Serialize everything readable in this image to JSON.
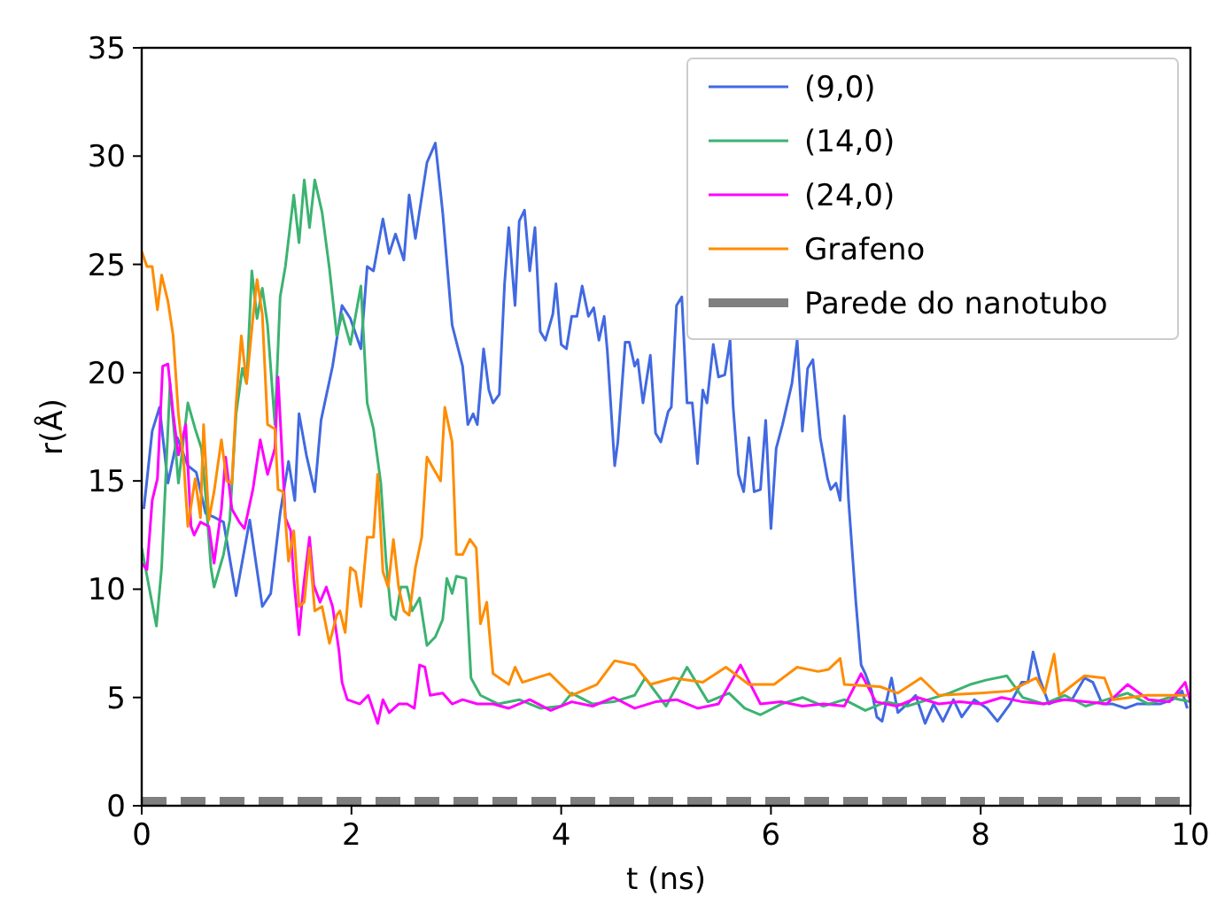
{
  "chart_data": {
    "type": "line",
    "xlabel": "t (ns)",
    "ylabel": "r(Å)",
    "xlim": [
      0,
      10
    ],
    "ylim": [
      0,
      35
    ],
    "xticks": [
      0,
      2,
      4,
      6,
      8,
      10
    ],
    "yticks": [
      0,
      5,
      10,
      15,
      20,
      25,
      30,
      35
    ],
    "grid": false,
    "legend": "top right",
    "marker": "none",
    "series": [
      {
        "name": "(9,0)",
        "color": "#4169e1",
        "x": [
          0.02,
          0.1,
          0.17,
          0.25,
          0.34,
          0.44,
          0.52,
          0.61,
          0.7,
          0.78,
          0.9,
          1.03,
          1.15,
          1.23,
          1.32,
          1.4,
          1.46,
          1.5,
          1.57,
          1.65,
          1.71,
          1.82,
          1.91,
          1.99,
          2.09,
          2.15,
          2.21,
          2.3,
          2.36,
          2.42,
          2.5,
          2.55,
          2.61,
          2.72,
          2.8,
          2.87,
          2.96,
          3.06,
          3.11,
          3.16,
          3.2,
          3.26,
          3.31,
          3.35,
          3.41,
          3.46,
          3.5,
          3.56,
          3.6,
          3.65,
          3.7,
          3.75,
          3.8,
          3.85,
          3.92,
          3.95,
          4.0,
          4.05,
          4.1,
          4.15,
          4.2,
          4.26,
          4.31,
          4.36,
          4.41,
          4.44,
          4.51,
          4.54,
          4.61,
          4.65,
          4.7,
          4.73,
          4.78,
          4.85,
          4.9,
          4.95,
          5.02,
          5.05,
          5.1,
          5.15,
          5.2,
          5.25,
          5.3,
          5.35,
          5.39,
          5.45,
          5.5,
          5.56,
          5.61,
          5.64,
          5.69,
          5.74,
          5.79,
          5.84,
          5.9,
          5.95,
          6.0,
          6.05,
          6.11,
          6.2,
          6.25,
          6.3,
          6.35,
          6.4,
          6.47,
          6.54,
          6.57,
          6.62,
          6.66,
          6.7,
          6.74,
          6.81,
          6.86,
          6.9,
          6.96,
          7.01,
          7.06,
          7.15,
          7.21,
          7.3,
          7.38,
          7.47,
          7.55,
          7.64,
          7.74,
          7.82,
          7.94,
          8.06,
          8.16,
          8.28,
          8.39,
          8.45,
          8.5,
          8.56,
          8.65,
          8.75,
          8.87,
          8.99,
          9.07,
          9.16,
          9.26,
          9.38,
          9.49,
          9.6,
          9.71,
          9.83,
          9.92,
          9.97
        ],
        "values": [
          13.7,
          17.3,
          18.4,
          14.9,
          17,
          15.7,
          15.4,
          13.5,
          13.3,
          13.1,
          9.7,
          13.2,
          9.2,
          9.8,
          13.5,
          15.9,
          14.1,
          18.1,
          16.2,
          14.5,
          17.8,
          20.3,
          23.1,
          22.5,
          21.1,
          24.9,
          24.7,
          27.1,
          25.5,
          26.4,
          25.2,
          28.2,
          26.2,
          29.7,
          30.6,
          27.4,
          22.2,
          20.3,
          17.6,
          18.1,
          17.6,
          21.1,
          19.2,
          18.6,
          19,
          24.1,
          26.7,
          23.1,
          27,
          27.5,
          24.7,
          26.7,
          21.9,
          21.5,
          22.7,
          24.1,
          21.3,
          21.1,
          22.6,
          22.6,
          24,
          22.6,
          23,
          21.5,
          22.6,
          21,
          15.7,
          16.8,
          21.4,
          21.4,
          20.3,
          20.6,
          18.6,
          20.8,
          17.2,
          16.8,
          18.2,
          18.4,
          23.1,
          23.5,
          18.6,
          18.6,
          15.8,
          19.2,
          18.6,
          21.3,
          19.8,
          19.9,
          21.5,
          18.4,
          15.3,
          14.5,
          17,
          14.5,
          14.6,
          17.8,
          12.8,
          16.5,
          17.6,
          19.5,
          21.5,
          17.3,
          20.2,
          20.6,
          17,
          15.1,
          14.6,
          14.9,
          14.1,
          18,
          14.1,
          9.4,
          6.5,
          6.1,
          5.3,
          4.1,
          3.9,
          5.9,
          4.3,
          4.7,
          5.1,
          3.8,
          4.7,
          3.9,
          4.9,
          4.1,
          4.9,
          4.5,
          3.9,
          4.7,
          5.7,
          5.7,
          7.1,
          5.9,
          4.7,
          4.9,
          4.9,
          5.9,
          5.7,
          4.7,
          4.7,
          4.5,
          4.7,
          4.7,
          4.7,
          4.9,
          5.3,
          4.5
        ]
      },
      {
        "name": "(14,0)",
        "color": "#3cb371",
        "x": [
          0,
          0.14,
          0.19,
          0.27,
          0.35,
          0.44,
          0.51,
          0.57,
          0.61,
          0.66,
          0.69,
          0.78,
          0.84,
          0.9,
          0.96,
          1.0,
          1.05,
          1.1,
          1.15,
          1.2,
          1.27,
          1.32,
          1.37,
          1.45,
          1.5,
          1.55,
          1.6,
          1.65,
          1.72,
          1.79,
          1.86,
          1.91,
          1.99,
          2.09,
          2.15,
          2.21,
          2.28,
          2.33,
          2.38,
          2.42,
          2.47,
          2.53,
          2.58,
          2.65,
          2.72,
          2.8,
          2.87,
          2.91,
          2.96,
          3.0,
          3.09,
          3.14,
          3.23,
          3.4,
          3.6,
          3.8,
          4.0,
          4.1,
          4.3,
          4.5,
          4.7,
          4.8,
          5.0,
          5.2,
          5.4,
          5.6,
          5.75,
          5.9,
          6.1,
          6.3,
          6.5,
          6.7,
          6.9,
          7.1,
          7.3,
          7.5,
          7.7,
          7.9,
          8.05,
          8.25,
          8.4,
          8.6,
          8.8,
          9.0,
          9.2,
          9.4,
          9.6,
          9.8,
          10
        ],
        "values": [
          11.9,
          8.3,
          11,
          19.5,
          14.9,
          18.6,
          17.4,
          16.5,
          14.3,
          11,
          10.1,
          11.6,
          13.2,
          18.1,
          20.2,
          19.5,
          24.7,
          22.5,
          23.9,
          22.2,
          17.6,
          23.5,
          24.9,
          28.2,
          26,
          28.9,
          26.7,
          28.9,
          27.4,
          24.8,
          21.7,
          22.7,
          21.3,
          24,
          18.6,
          17.4,
          14.9,
          11.3,
          8.8,
          8.6,
          10.1,
          10.1,
          9,
          9.6,
          7.4,
          7.8,
          8.6,
          10.5,
          9.8,
          10.6,
          10.5,
          5.9,
          5.1,
          4.7,
          4.9,
          4.5,
          4.6,
          5.2,
          4.7,
          4.8,
          5.1,
          5.9,
          4.6,
          6.4,
          4.8,
          5.2,
          4.5,
          4.2,
          4.7,
          5.0,
          4.6,
          4.9,
          4.4,
          4.8,
          4.6,
          4.9,
          5.2,
          5.6,
          5.8,
          6.0,
          5.0,
          4.7,
          5.1,
          4.6,
          4.9,
          5.2,
          4.7,
          5.0,
          4.8
        ]
      },
      {
        "name": "(24,0)",
        "color": "#ff00ff",
        "x": [
          0,
          0.05,
          0.1,
          0.15,
          0.2,
          0.25,
          0.3,
          0.35,
          0.42,
          0.47,
          0.5,
          0.56,
          0.64,
          0.69,
          0.76,
          0.8,
          0.86,
          0.93,
          0.98,
          1.06,
          1.13,
          1.2,
          1.27,
          1.3,
          1.37,
          1.42,
          1.45,
          1.5,
          1.54,
          1.6,
          1.64,
          1.7,
          1.76,
          1.82,
          1.88,
          1.91,
          1.96,
          2.08,
          2.16,
          2.25,
          2.3,
          2.36,
          2.45,
          2.53,
          2.6,
          2.65,
          2.7,
          2.75,
          2.87,
          2.96,
          3.06,
          3.2,
          3.35,
          3.5,
          3.7,
          3.9,
          4.1,
          4.3,
          4.5,
          4.7,
          4.9,
          5.1,
          5.3,
          5.5,
          5.71,
          5.9,
          6.1,
          6.3,
          6.5,
          6.7,
          6.86,
          7.0,
          7.2,
          7.4,
          7.6,
          7.8,
          8.0,
          8.2,
          8.4,
          8.6,
          8.8,
          9.0,
          9.2,
          9.4,
          9.6,
          9.8,
          9.95,
          10
        ],
        "values": [
          11.2,
          10.9,
          14.1,
          15.1,
          20.3,
          20.4,
          18.1,
          16.2,
          17.6,
          12.9,
          12.5,
          13.1,
          12.9,
          11.2,
          13.7,
          16.1,
          13.7,
          13.1,
          12.8,
          14.6,
          16.9,
          15.3,
          16.5,
          19.8,
          13.3,
          12.7,
          10.5,
          7.9,
          10,
          12.4,
          10.2,
          9.4,
          10.1,
          9.2,
          7.2,
          5.7,
          4.9,
          4.7,
          5.1,
          3.8,
          4.9,
          4.3,
          4.7,
          4.7,
          4.5,
          6.5,
          6.4,
          5.1,
          5.2,
          4.7,
          4.9,
          4.7,
          4.7,
          4.5,
          4.9,
          4.4,
          4.8,
          4.6,
          5.0,
          4.5,
          4.8,
          4.9,
          4.5,
          4.7,
          6.5,
          4.7,
          4.8,
          4.6,
          4.7,
          4.6,
          6.1,
          4.8,
          4.6,
          5.0,
          4.7,
          4.8,
          4.7,
          5.0,
          4.8,
          4.7,
          4.9,
          4.8,
          4.7,
          5.6,
          4.9,
          4.8,
          5.7,
          4.8
        ]
      },
      {
        "name": "Grafeno",
        "color": "#ff8c00",
        "x": [
          0,
          0.05,
          0.1,
          0.15,
          0.19,
          0.25,
          0.3,
          0.35,
          0.4,
          0.44,
          0.51,
          0.56,
          0.59,
          0.64,
          0.69,
          0.76,
          0.81,
          0.86,
          0.9,
          0.95,
          1.0,
          1.06,
          1.1,
          1.15,
          1.2,
          1.27,
          1.3,
          1.35,
          1.4,
          1.45,
          1.5,
          1.55,
          1.6,
          1.65,
          1.72,
          1.79,
          1.86,
          1.89,
          1.94,
          1.99,
          2.04,
          2.09,
          2.15,
          2.21,
          2.25,
          2.3,
          2.35,
          2.4,
          2.45,
          2.5,
          2.55,
          2.61,
          2.67,
          2.72,
          2.79,
          2.85,
          2.89,
          2.96,
          3.0,
          3.06,
          3.13,
          3.19,
          3.23,
          3.29,
          3.35,
          3.5,
          3.56,
          3.63,
          3.89,
          4.1,
          4.34,
          4.51,
          4.7,
          4.85,
          5.07,
          5.35,
          5.57,
          5.79,
          6.03,
          6.25,
          6.45,
          6.55,
          6.66,
          6.7,
          7.04,
          7.21,
          7.43,
          7.6,
          8.0,
          8.28,
          8.53,
          8.61,
          8.7,
          8.75,
          8.99,
          9.18,
          9.26,
          9.58,
          9.97
        ],
        "values": [
          25.6,
          24.9,
          24.9,
          22.9,
          24.5,
          23.3,
          21.7,
          18.1,
          15.9,
          12.9,
          15.1,
          13.3,
          17.6,
          13.2,
          14.5,
          16.9,
          15,
          14.9,
          18.6,
          21.7,
          19.5,
          22.5,
          24.3,
          22.7,
          17.6,
          17.4,
          14.6,
          14.5,
          11.3,
          12.7,
          9.2,
          9.4,
          11.9,
          9,
          9.2,
          7.5,
          8.8,
          9,
          8,
          11,
          10.8,
          9.2,
          12.4,
          12.4,
          15.3,
          10.8,
          10.1,
          12.3,
          10.1,
          9,
          8.8,
          11,
          12.4,
          16.1,
          15.5,
          15,
          18.4,
          16.8,
          11.6,
          11.6,
          12.3,
          11.9,
          8.4,
          9.4,
          6.1,
          5.6,
          6.4,
          5.7,
          6.1,
          5.1,
          5.6,
          6.7,
          6.5,
          5.6,
          5.9,
          5.7,
          6.4,
          5.6,
          5.6,
          6.4,
          6.2,
          6.3,
          6.8,
          5.6,
          5.5,
          5.2,
          5.9,
          5.1,
          5.2,
          5.3,
          5.9,
          5.2,
          7.0,
          5.1,
          6.0,
          5.9,
          4.9,
          5.1,
          5.1
        ]
      },
      {
        "name": "Parede do nanotubo",
        "color": "#808080",
        "line_style": "dashed",
        "x": [
          0,
          10
        ],
        "values": [
          0.2,
          0.2
        ]
      }
    ]
  }
}
